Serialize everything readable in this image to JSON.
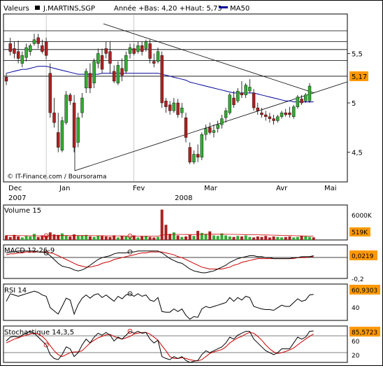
{
  "header": {
    "valeurs_label": "Valeurs",
    "symbol": "J.MARTINS,SGP",
    "range_text": "Année +Bas: 4,20 +Haut: 5,73",
    "ma_label": "MA50",
    "ma_color": "#000099"
  },
  "colors": {
    "up": "#33aa33",
    "down": "#aa2222",
    "ma": "#000099",
    "signal": "#cc0000",
    "tag_bg": "#ff9900"
  },
  "watermark": "© IT-Finance.com / Boursorama",
  "x_axis": {
    "months": [
      "Dec",
      "Jan",
      "Fev",
      "Mar",
      "Avr",
      "Mai"
    ],
    "years": [
      "2007",
      "2008"
    ]
  },
  "chart_data": [
    {
      "type": "candlestick",
      "name": "price",
      "y_ticks": [
        "5,5",
        "5",
        "4,5"
      ],
      "ylim": [
        4.2,
        5.9
      ],
      "last_label": "5,17",
      "ma_name": "MA50",
      "candles": [
        {
          "o": 5.26,
          "h": 5.3,
          "l": 5.18,
          "c": 5.22
        },
        {
          "o": 5.6,
          "h": 5.66,
          "l": 5.48,
          "c": 5.52
        },
        {
          "o": 5.55,
          "h": 5.62,
          "l": 5.45,
          "c": 5.5
        },
        {
          "o": 5.52,
          "h": 5.63,
          "l": 5.4,
          "c": 5.45
        },
        {
          "o": 5.4,
          "h": 5.52,
          "l": 5.36,
          "c": 5.48
        },
        {
          "o": 5.46,
          "h": 5.6,
          "l": 5.42,
          "c": 5.56
        },
        {
          "o": 5.52,
          "h": 5.6,
          "l": 5.48,
          "c": 5.58
        },
        {
          "o": 5.6,
          "h": 5.7,
          "l": 5.58,
          "c": 5.64
        },
        {
          "o": 5.66,
          "h": 5.7,
          "l": 5.55,
          "c": 5.6
        },
        {
          "o": 5.58,
          "h": 5.64,
          "l": 5.5,
          "c": 5.52
        },
        {
          "o": 5.62,
          "h": 5.66,
          "l": 5.44,
          "c": 5.48
        },
        {
          "o": 5.3,
          "h": 5.4,
          "l": 4.85,
          "c": 4.9
        },
        {
          "o": 4.9,
          "h": 5.05,
          "l": 4.75,
          "c": 4.8
        },
        {
          "o": 4.7,
          "h": 4.9,
          "l": 4.5,
          "c": 4.55
        },
        {
          "o": 4.52,
          "h": 4.86,
          "l": 4.5,
          "c": 4.82
        },
        {
          "o": 4.8,
          "h": 5.12,
          "l": 4.78,
          "c": 5.08
        },
        {
          "o": 5.08,
          "h": 5.1,
          "l": 4.98,
          "c": 5.02
        },
        {
          "o": 5.0,
          "h": 5.08,
          "l": 4.5,
          "c": 4.55
        },
        {
          "o": 4.6,
          "h": 4.9,
          "l": 4.55,
          "c": 4.85
        },
        {
          "o": 4.9,
          "h": 5.1,
          "l": 4.85,
          "c": 5.05
        },
        {
          "o": 5.15,
          "h": 5.35,
          "l": 5.1,
          "c": 5.32
        },
        {
          "o": 5.3,
          "h": 5.4,
          "l": 5.1,
          "c": 5.15
        },
        {
          "o": 5.2,
          "h": 5.45,
          "l": 5.15,
          "c": 5.42
        },
        {
          "o": 5.4,
          "h": 5.55,
          "l": 5.35,
          "c": 5.5
        },
        {
          "o": 5.48,
          "h": 5.55,
          "l": 5.3,
          "c": 5.34
        },
        {
          "o": 5.55,
          "h": 5.62,
          "l": 5.45,
          "c": 5.5
        },
        {
          "o": 5.52,
          "h": 5.62,
          "l": 5.3,
          "c": 5.4
        },
        {
          "o": 5.32,
          "h": 5.38,
          "l": 5.2,
          "c": 5.22
        },
        {
          "o": 5.2,
          "h": 5.42,
          "l": 5.18,
          "c": 5.38
        },
        {
          "o": 5.35,
          "h": 5.45,
          "l": 5.22,
          "c": 5.28
        },
        {
          "o": 5.32,
          "h": 5.52,
          "l": 5.3,
          "c": 5.48
        },
        {
          "o": 5.5,
          "h": 5.6,
          "l": 5.45,
          "c": 5.56
        },
        {
          "o": 5.55,
          "h": 5.6,
          "l": 5.48,
          "c": 5.5
        },
        {
          "o": 5.52,
          "h": 5.62,
          "l": 5.5,
          "c": 5.58
        },
        {
          "o": 5.58,
          "h": 5.62,
          "l": 5.48,
          "c": 5.52
        },
        {
          "o": 5.55,
          "h": 5.64,
          "l": 5.52,
          "c": 5.62
        },
        {
          "o": 5.6,
          "h": 5.64,
          "l": 5.4,
          "c": 5.45
        },
        {
          "o": 5.42,
          "h": 5.5,
          "l": 5.36,
          "c": 5.4
        },
        {
          "o": 5.42,
          "h": 5.56,
          "l": 5.4,
          "c": 5.52
        },
        {
          "o": 5.48,
          "h": 5.52,
          "l": 4.95,
          "c": 5.0
        },
        {
          "o": 5.02,
          "h": 5.05,
          "l": 4.9,
          "c": 4.96
        },
        {
          "o": 4.98,
          "h": 5.02,
          "l": 4.88,
          "c": 4.92
        },
        {
          "o": 4.92,
          "h": 5.05,
          "l": 4.9,
          "c": 5.0
        },
        {
          "o": 5.0,
          "h": 5.04,
          "l": 4.85,
          "c": 4.88
        },
        {
          "o": 4.9,
          "h": 5.0,
          "l": 4.85,
          "c": 4.95
        },
        {
          "o": 4.85,
          "h": 4.9,
          "l": 4.6,
          "c": 4.65
        },
        {
          "o": 4.55,
          "h": 4.6,
          "l": 4.38,
          "c": 4.4
        },
        {
          "o": 4.4,
          "h": 4.52,
          "l": 4.38,
          "c": 4.48
        },
        {
          "o": 4.48,
          "h": 4.58,
          "l": 4.4,
          "c": 4.45
        },
        {
          "o": 4.45,
          "h": 4.7,
          "l": 4.42,
          "c": 4.68
        },
        {
          "o": 4.68,
          "h": 4.78,
          "l": 4.62,
          "c": 4.74
        },
        {
          "o": 4.75,
          "h": 4.8,
          "l": 4.68,
          "c": 4.7
        },
        {
          "o": 4.7,
          "h": 4.78,
          "l": 4.65,
          "c": 4.72
        },
        {
          "o": 4.74,
          "h": 4.82,
          "l": 4.7,
          "c": 4.78
        },
        {
          "o": 4.78,
          "h": 4.88,
          "l": 4.74,
          "c": 4.84
        },
        {
          "o": 4.85,
          "h": 4.95,
          "l": 4.8,
          "c": 4.92
        },
        {
          "o": 4.9,
          "h": 5.1,
          "l": 4.88,
          "c": 5.08
        },
        {
          "o": 5.05,
          "h": 5.12,
          "l": 4.95,
          "c": 4.98
        },
        {
          "o": 5.02,
          "h": 5.15,
          "l": 5.0,
          "c": 5.12
        },
        {
          "o": 5.1,
          "h": 5.22,
          "l": 5.05,
          "c": 5.08
        },
        {
          "o": 5.08,
          "h": 5.2,
          "l": 5.05,
          "c": 5.18
        },
        {
          "o": 5.12,
          "h": 5.24,
          "l": 5.1,
          "c": 5.16
        },
        {
          "o": 5.1,
          "h": 5.14,
          "l": 4.92,
          "c": 4.95
        },
        {
          "o": 4.95,
          "h": 5.0,
          "l": 4.88,
          "c": 4.92
        },
        {
          "o": 4.9,
          "h": 4.95,
          "l": 4.85,
          "c": 4.88
        },
        {
          "o": 4.88,
          "h": 4.92,
          "l": 4.82,
          "c": 4.86
        },
        {
          "o": 4.86,
          "h": 4.9,
          "l": 4.8,
          "c": 4.84
        },
        {
          "o": 4.84,
          "h": 4.88,
          "l": 4.78,
          "c": 4.82
        },
        {
          "o": 4.82,
          "h": 4.88,
          "l": 4.8,
          "c": 4.86
        },
        {
          "o": 4.86,
          "h": 4.92,
          "l": 4.84,
          "c": 4.9
        },
        {
          "o": 4.9,
          "h": 4.94,
          "l": 4.86,
          "c": 4.88
        },
        {
          "o": 4.9,
          "h": 4.96,
          "l": 4.85,
          "c": 4.88
        },
        {
          "o": 4.86,
          "h": 4.98,
          "l": 4.84,
          "c": 4.96
        },
        {
          "o": 4.96,
          "h": 5.08,
          "l": 4.94,
          "c": 5.06
        },
        {
          "o": 5.04,
          "h": 5.08,
          "l": 4.98,
          "c": 5.0
        },
        {
          "o": 5.02,
          "h": 5.1,
          "l": 5.0,
          "c": 5.08
        },
        {
          "o": 5.02,
          "h": 5.2,
          "l": 5.0,
          "c": 5.17
        }
      ],
      "ma50": [
        5.3,
        5.31,
        5.32,
        5.33,
        5.34,
        5.34,
        5.35,
        5.36,
        5.37,
        5.37,
        5.37,
        5.36,
        5.35,
        5.34,
        5.33,
        5.32,
        5.31,
        5.3,
        5.29,
        5.29,
        5.29,
        5.29,
        5.29,
        5.29,
        5.3,
        5.3,
        5.3,
        5.3,
        5.3,
        5.3,
        5.3,
        5.3,
        5.3,
        5.3,
        5.3,
        5.3,
        5.3,
        5.3,
        5.3,
        5.29,
        5.28,
        5.27,
        5.26,
        5.25,
        5.24,
        5.23,
        5.21,
        5.2,
        5.19,
        5.18,
        5.17,
        5.16,
        5.15,
        5.14,
        5.13,
        5.12,
        5.11,
        5.1,
        5.1,
        5.1,
        5.1,
        5.1,
        5.1,
        5.09,
        5.08,
        5.07,
        5.06,
        5.05,
        5.04,
        5.03,
        5.02,
        5.02,
        5.01,
        5.01,
        5.01,
        5.01,
        5.01,
        5.01
      ],
      "support_lines": [
        5.73,
        5.62,
        5.54,
        5.43,
        5.27
      ]
    },
    {
      "type": "bar",
      "name": "Volume 15",
      "title": "Volume 15",
      "y_ticks": [
        "6000K"
      ],
      "last_label": "519K",
      "ylim": [
        0,
        6500
      ],
      "values": [
        900,
        600,
        1000,
        700,
        500,
        800,
        700,
        1200,
        600,
        900,
        800,
        1500,
        1100,
        1000,
        1300,
        900,
        700,
        1100,
        800,
        900,
        1000,
        700,
        600,
        900,
        800,
        700,
        600,
        900,
        500,
        800,
        700,
        600,
        900,
        500,
        700,
        800,
        600,
        500,
        600,
        6000,
        3000,
        1200,
        1500,
        900,
        600,
        700,
        1000,
        800,
        1800,
        1400,
        1200,
        1700,
        900,
        800,
        1300,
        900,
        700,
        600,
        800,
        700,
        900,
        600,
        500,
        700,
        600,
        800,
        500,
        700,
        600,
        500,
        600,
        700,
        500,
        600,
        800,
        700,
        600,
        519
      ],
      "avg": [
        900,
        880,
        870,
        860,
        850,
        840,
        830,
        830,
        830,
        830,
        830,
        840,
        850,
        860,
        870,
        870,
        870,
        870,
        870,
        870,
        870,
        860,
        850,
        850,
        840,
        830,
        820,
        820,
        810,
        800,
        790,
        780,
        780,
        770,
        770,
        770,
        760,
        760,
        750,
        950,
        1050,
        1080,
        1100,
        1100,
        1090,
        1080,
        1080,
        1080,
        1100,
        1110,
        1120,
        1140,
        1140,
        1130,
        1130,
        1120,
        1110,
        1100,
        1090,
        1080,
        1070,
        1050,
        1040,
        1020,
        1000,
        990,
        970,
        950,
        930,
        910,
        890,
        870,
        850,
        830,
        810,
        790,
        770,
        760
      ],
      "markers": [
        10,
        31
      ]
    },
    {
      "type": "line",
      "name": "MACD 12-26-9",
      "title": "MACD 12-26-9",
      "y_ticks": [
        "-0,2"
      ],
      "last_label": "0,0219",
      "ylim": [
        -0.22,
        0.12
      ],
      "macd": [
        0.05,
        0.06,
        0.06,
        0.07,
        0.07,
        0.07,
        0.07,
        0.07,
        0.06,
        0.06,
        0.05,
        0.02,
        -0.02,
        -0.06,
        -0.09,
        -0.1,
        -0.11,
        -0.13,
        -0.14,
        -0.13,
        -0.11,
        -0.08,
        -0.05,
        -0.02,
        0.0,
        0.01,
        0.02,
        0.04,
        0.05,
        0.05,
        0.05,
        0.06,
        0.06,
        0.07,
        0.07,
        0.07,
        0.07,
        0.07,
        0.07,
        0.05,
        0.02,
        -0.01,
        -0.03,
        -0.05,
        -0.06,
        -0.09,
        -0.12,
        -0.14,
        -0.15,
        -0.16,
        -0.16,
        -0.15,
        -0.14,
        -0.12,
        -0.1,
        -0.08,
        -0.05,
        -0.03,
        -0.01,
        0.0,
        0.01,
        0.02,
        0.02,
        0.01,
        0.01,
        0.0,
        0.0,
        -0.01,
        -0.01,
        -0.01,
        -0.01,
        -0.01,
        0.0,
        0.0,
        0.01,
        0.01,
        0.01,
        0.02
      ],
      "signal": [
        0.03,
        0.04,
        0.04,
        0.05,
        0.05,
        0.06,
        0.06,
        0.06,
        0.06,
        0.06,
        0.06,
        0.05,
        0.04,
        0.02,
        0.0,
        -0.02,
        -0.04,
        -0.06,
        -0.08,
        -0.09,
        -0.1,
        -0.1,
        -0.09,
        -0.08,
        -0.06,
        -0.05,
        -0.04,
        -0.02,
        -0.01,
        0.0,
        0.01,
        0.02,
        0.03,
        0.04,
        0.05,
        0.05,
        0.06,
        0.06,
        0.06,
        0.06,
        0.05,
        0.04,
        0.03,
        0.01,
        0.0,
        -0.02,
        -0.04,
        -0.06,
        -0.08,
        -0.1,
        -0.11,
        -0.12,
        -0.12,
        -0.12,
        -0.12,
        -0.11,
        -0.1,
        -0.08,
        -0.07,
        -0.05,
        -0.04,
        -0.03,
        -0.02,
        -0.01,
        -0.01,
        -0.01,
        -0.01,
        -0.01,
        -0.01,
        -0.01,
        -0.01,
        -0.01,
        -0.01,
        0.0,
        0.0,
        0.0,
        0.01,
        0.01
      ],
      "markers": [
        10,
        31
      ]
    },
    {
      "type": "line",
      "name": "RSI 14",
      "title": "RSI 14",
      "y_ticks": [
        "40"
      ],
      "last_label": "60,9303",
      "ylim": [
        20,
        75
      ],
      "values": [
        50,
        62,
        60,
        58,
        60,
        62,
        64,
        66,
        64,
        60,
        58,
        40,
        35,
        30,
        42,
        55,
        52,
        30,
        45,
        55,
        60,
        55,
        60,
        62,
        56,
        60,
        55,
        50,
        58,
        54,
        60,
        62,
        58,
        62,
        58,
        60,
        52,
        50,
        56,
        34,
        33,
        33,
        38,
        34,
        38,
        28,
        22,
        26,
        25,
        38,
        42,
        40,
        42,
        44,
        46,
        48,
        56,
        50,
        56,
        52,
        58,
        56,
        42,
        40,
        38,
        37,
        37,
        36,
        40,
        44,
        42,
        42,
        48,
        54,
        50,
        52,
        60,
        61
      ],
      "markers": [
        31
      ]
    },
    {
      "type": "line",
      "name": "Stochastique 14,3,5",
      "title": "Stochastique 14,3,5",
      "y_ticks": [
        "60",
        "20"
      ],
      "last_label": "85,5723",
      "ylim": [
        5,
        95
      ],
      "k": [
        60,
        70,
        72,
        70,
        75,
        80,
        85,
        80,
        70,
        60,
        50,
        25,
        15,
        12,
        25,
        45,
        40,
        20,
        30,
        50,
        65,
        55,
        70,
        80,
        75,
        82,
        75,
        60,
        70,
        65,
        75,
        85,
        80,
        85,
        80,
        82,
        65,
        55,
        62,
        20,
        15,
        12,
        20,
        15,
        20,
        10,
        5,
        8,
        10,
        25,
        35,
        30,
        35,
        40,
        45,
        55,
        70,
        65,
        75,
        80,
        85,
        85,
        65,
        55,
        45,
        35,
        30,
        25,
        30,
        40,
        40,
        40,
        55,
        70,
        65,
        70,
        85,
        86
      ],
      "d": [
        55,
        60,
        65,
        68,
        72,
        75,
        78,
        80,
        78,
        72,
        62,
        48,
        35,
        25,
        20,
        25,
        30,
        32,
        32,
        35,
        45,
        55,
        62,
        68,
        72,
        76,
        77,
        72,
        68,
        65,
        68,
        72,
        78,
        80,
        82,
        82,
        78,
        70,
        62,
        48,
        35,
        20,
        15,
        15,
        17,
        15,
        12,
        10,
        9,
        12,
        20,
        28,
        32,
        35,
        38,
        45,
        55,
        62,
        68,
        72,
        78,
        82,
        80,
        72,
        62,
        50,
        40,
        32,
        28,
        30,
        33,
        37,
        42,
        50,
        58,
        65,
        72,
        78
      ],
      "markers": [
        10,
        31
      ]
    }
  ]
}
